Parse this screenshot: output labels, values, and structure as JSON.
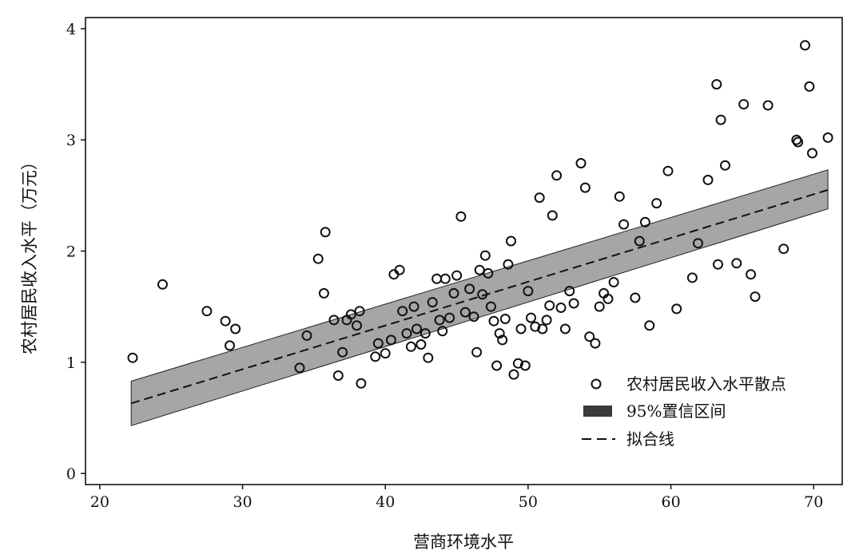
{
  "chart_data": {
    "type": "scatter",
    "xlabel": "营商环境水平",
    "ylabel": "农村居民收入水平（万元）",
    "xlim": [
      19,
      72
    ],
    "ylim": [
      -0.1,
      4.1
    ],
    "x_ticks": [
      20,
      30,
      40,
      50,
      60,
      70
    ],
    "y_ticks": [
      0,
      1,
      2,
      3,
      4
    ],
    "grid": false,
    "legend_position": "bottom-right",
    "colors": {
      "points": "#111111",
      "band_fill": "#a6a6a6",
      "band_legend": "#3a3a3a",
      "line": "#111111"
    },
    "legend": {
      "scatter_label": "农村居民收入水平散点",
      "band_label": "95%置信区间",
      "line_label": "拟合线"
    },
    "fit_line": {
      "x": [
        22.2,
        71.0
      ],
      "y": [
        0.63,
        2.55
      ]
    },
    "confidence_band": {
      "x": [
        22.2,
        71.0
      ],
      "lower": [
        0.43,
        2.38
      ],
      "upper": [
        0.83,
        2.73
      ]
    },
    "scatter": {
      "x": [
        22.3,
        24.4,
        27.5,
        28.8,
        29.1,
        29.5,
        34.0,
        34.5,
        35.3,
        35.7,
        35.8,
        36.4,
        36.7,
        37.0,
        37.3,
        37.6,
        38.0,
        38.2,
        38.3,
        39.3,
        39.5,
        40.0,
        40.4,
        40.6,
        41.0,
        41.2,
        41.5,
        41.8,
        42.0,
        42.2,
        42.5,
        42.8,
        43.0,
        43.3,
        43.6,
        43.8,
        44.0,
        44.2,
        44.5,
        44.8,
        45.0,
        45.3,
        45.6,
        45.9,
        46.2,
        46.4,
        46.6,
        46.8,
        47.0,
        47.2,
        47.4,
        47.6,
        47.8,
        48.0,
        48.2,
        48.4,
        48.6,
        48.8,
        49.0,
        49.3,
        49.5,
        49.8,
        50.0,
        50.2,
        50.5,
        50.8,
        51.0,
        51.3,
        51.5,
        51.7,
        52.0,
        52.3,
        52.6,
        52.9,
        53.2,
        53.7,
        54.0,
        54.3,
        54.7,
        55.0,
        55.3,
        55.6,
        56.0,
        56.4,
        56.7,
        57.5,
        57.8,
        58.2,
        58.5,
        59.0,
        59.8,
        60.4,
        61.5,
        61.9,
        62.6,
        63.2,
        63.3,
        63.5,
        63.8,
        64.6,
        65.1,
        65.6,
        65.9,
        66.8,
        67.9,
        68.8,
        68.9,
        69.4,
        69.7,
        69.9,
        71.0
      ],
      "y": [
        1.04,
        1.7,
        1.46,
        1.37,
        1.15,
        1.3,
        0.95,
        1.24,
        1.93,
        1.62,
        2.17,
        1.38,
        0.88,
        1.09,
        1.38,
        1.43,
        1.33,
        1.46,
        0.81,
        1.05,
        1.17,
        1.08,
        1.2,
        1.79,
        1.83,
        1.46,
        1.26,
        1.14,
        1.5,
        1.3,
        1.16,
        1.26,
        1.04,
        1.54,
        1.75,
        1.38,
        1.28,
        1.75,
        1.4,
        1.62,
        1.78,
        2.31,
        1.45,
        1.66,
        1.41,
        1.09,
        1.83,
        1.61,
        1.96,
        1.8,
        1.5,
        1.37,
        0.97,
        1.26,
        1.2,
        1.39,
        1.88,
        2.09,
        0.89,
        0.99,
        1.3,
        0.97,
        1.64,
        1.4,
        1.32,
        2.48,
        1.3,
        1.38,
        1.51,
        2.32,
        2.68,
        1.49,
        1.3,
        1.64,
        1.53,
        2.79,
        2.57,
        1.23,
        1.17,
        1.5,
        1.62,
        1.57,
        1.72,
        2.49,
        2.24,
        1.58,
        2.09,
        2.26,
        1.33,
        2.43,
        2.72,
        1.48,
        1.76,
        2.07,
        2.64,
        3.5,
        1.88,
        3.18,
        2.77,
        1.89,
        3.32,
        1.79,
        1.59,
        3.31,
        2.02,
        3.0,
        2.98,
        3.85,
        3.48,
        2.88,
        3.02
      ]
    }
  }
}
